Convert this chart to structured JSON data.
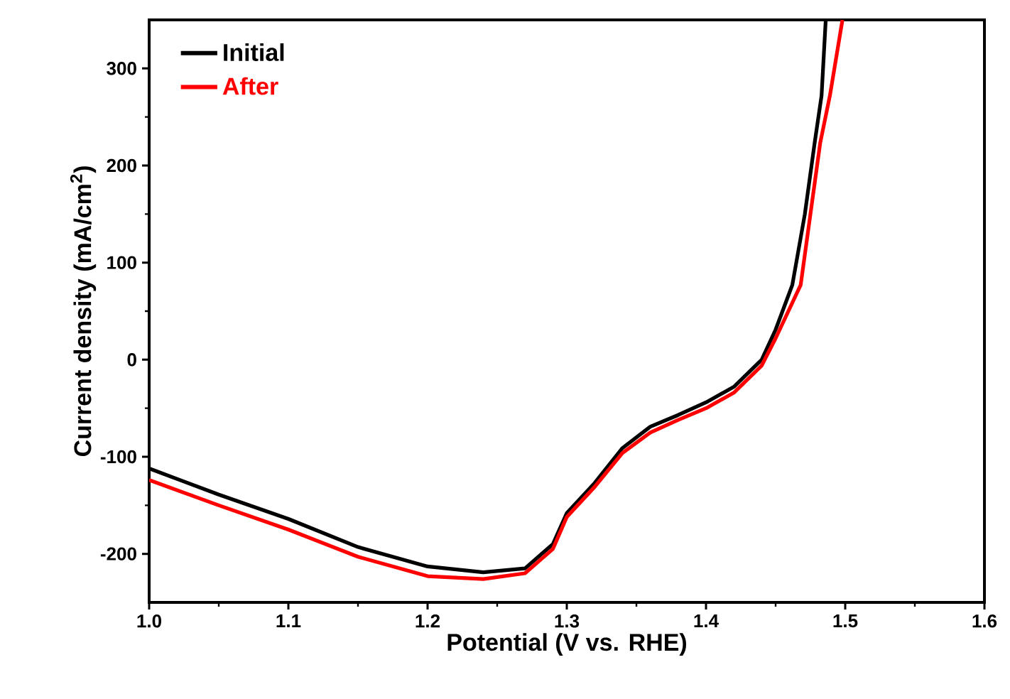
{
  "chart_data": {
    "type": "line",
    "xlabel": "Potential (V vs. RHE)",
    "ylabel": "Current density (mA/cm$^{2}$)",
    "xlim": [
      1.0,
      1.6
    ],
    "ylim": [
      -250,
      350
    ],
    "xticks": [
      {
        "value": 1.0,
        "label": "1.0"
      },
      1.1,
      1.2,
      1.3,
      1.4,
      1.5,
      1.6
    ],
    "yticks": [
      -200,
      -100,
      0,
      100,
      200,
      300
    ],
    "legend": "top left",
    "grid": false,
    "marker": "none",
    "line_style": "solid",
    "series": [
      {
        "name": "Initial",
        "color": "#000000",
        "x": [
          1.0,
          1.05,
          1.1,
          1.15,
          1.2,
          1.24,
          1.27,
          1.29,
          1.3,
          1.32,
          1.34,
          1.36,
          1.38,
          1.4,
          1.42,
          1.44,
          1.45,
          1.462,
          1.471,
          1.478,
          1.483,
          1.486
        ],
        "values": [
          -112,
          -139,
          -164,
          -193,
          -213,
          -219,
          -215,
          -190,
          -158,
          -127,
          -91,
          -69,
          -57,
          -44,
          -28,
          0,
          31,
          77,
          150,
          223,
          272,
          350
        ]
      },
      {
        "name": "After",
        "color": "#ff0000",
        "x": [
          1.0,
          1.05,
          1.1,
          1.15,
          1.2,
          1.24,
          1.27,
          1.29,
          1.3,
          1.32,
          1.34,
          1.36,
          1.38,
          1.4,
          1.42,
          1.44,
          1.45,
          1.468,
          1.475,
          1.482,
          1.489,
          1.498
        ],
        "values": [
          -124,
          -150,
          -175,
          -203,
          -223,
          -226,
          -220,
          -195,
          -162,
          -131,
          -96,
          -75,
          -62,
          -50,
          -34,
          -6,
          22,
          77,
          150,
          223,
          272,
          350
        ]
      }
    ]
  }
}
